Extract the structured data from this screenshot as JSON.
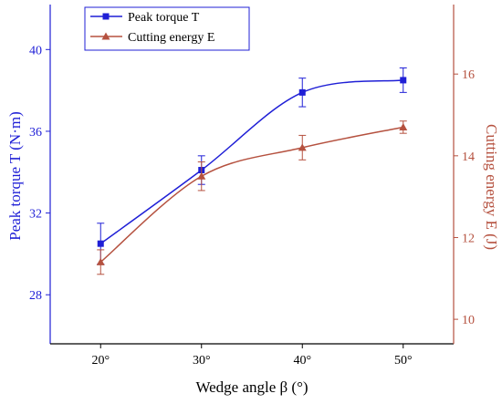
{
  "chart_data": {
    "type": "line",
    "title": "",
    "xlabel": "Wedge angle β (°)",
    "ylabel_left": "Peak torque T (N·m)",
    "ylabel_right": "Cutting energy E (J)",
    "categories": [
      "20°",
      "30°",
      "40°",
      "50°"
    ],
    "x": [
      20,
      30,
      40,
      50
    ],
    "xlim": [
      15,
      55
    ],
    "ylim_left": [
      25.6,
      42.2
    ],
    "ylim_right": [
      9.4,
      17.7
    ],
    "yticks_left": [
      28,
      32,
      36,
      40
    ],
    "yticks_right": [
      10,
      12,
      14,
      16
    ],
    "grid": false,
    "legend_position": "top-left",
    "series": [
      {
        "name": "Peak torque T",
        "axis": "left",
        "marker": "square",
        "color": "#1f1fd6",
        "values": [
          30.5,
          34.1,
          37.9,
          38.5
        ],
        "errors": [
          1.0,
          0.7,
          0.7,
          0.6
        ]
      },
      {
        "name": "Cutting energy E",
        "axis": "right",
        "marker": "triangle",
        "color": "#b5513f",
        "values": [
          11.4,
          13.5,
          14.2,
          14.7
        ],
        "errors": [
          0.3,
          0.35,
          0.3,
          0.15
        ]
      }
    ]
  }
}
